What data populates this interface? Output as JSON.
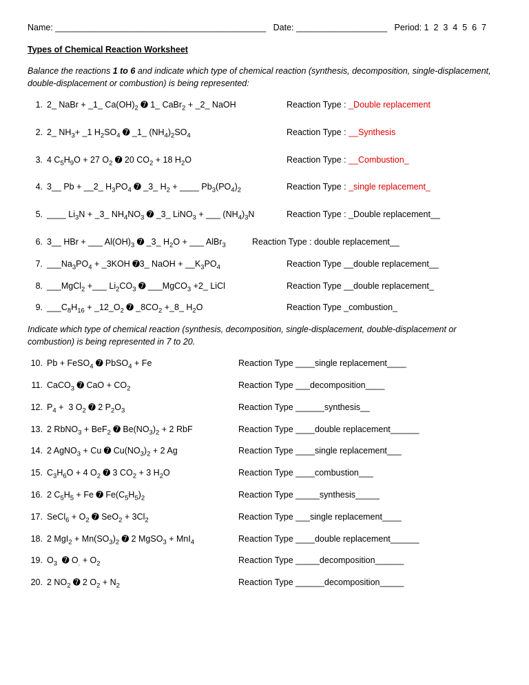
{
  "header": {
    "name_label": "Name: ____________________________________________",
    "date_label": "Date: ___________________",
    "period_label": "Period: 1  2  3  4  5  6  7"
  },
  "title": "Types of Chemical Reaction Worksheet",
  "instructions1_pre": "Balance the reactions ",
  "instructions1_bold": "1 to 6",
  "instructions1_post": " and indicate which type of chemical reaction (synthesis, decomposition, single-displacement, double-displacement or combustion) is being represented:",
  "instructions2": "Indicate which type of chemical reaction (synthesis, decomposition, single-displacement, double-displacement or combustion) is being represented in 7 to 20.",
  "rt_label_colon": "Reaction Type : ",
  "rt_label": "Reaction Type ",
  "q": {
    "1": {
      "num": "1.",
      "eq": "2_ NaBr + _1_ Ca(OH)₂ ➐ 1_ CaBr₂ + _2_ NaOH",
      "ans": "_Double replacement",
      "red": true
    },
    "2": {
      "num": "2.",
      "eq": "2_ NH₃+ _1 H₂SO₄ ➐ _1_ (NH₄)₂SO₄",
      "ans": "__Synthesis",
      "red": true
    },
    "3": {
      "num": "3.",
      "eq": "4 C₅H₉O + 27 O₂ ➐ 20 CO₂ + 18 H₂O",
      "ans": "__Combustion_",
      "red": true
    },
    "4": {
      "num": "4.",
      "eq": "3__ Pb + __2_ H₃PO₄ ➐ _3_ H₂ + ____ Pb₃(PO₄)₂",
      "ans": "_single replacement_",
      "red": true
    },
    "5": {
      "num": "5.",
      "eq": "____ Li₃N + _3_ NH₄NO₃ ➐ _3_ LiNO₃ + ___ (NH₄)₃N",
      "ans": "_Double replacement__",
      "red": false
    },
    "6": {
      "num": "6.",
      "eq": "3__ HBr + ___ Al(OH)₃ ➐ _3_ H₂O + ___ AlBr₃",
      "ans": "double replacement__",
      "red": false,
      "rtwidth": "narrow"
    },
    "7": {
      "num": "7.",
      "eq": "___Na₃PO₄ + _3KOH ➐3_ NaOH + __K₃PO₄",
      "ans": "__double replacement__",
      "red": false
    },
    "8": {
      "num": "8.",
      "eq": "___MgCl₂ +___ Li₂CO₃ ➐ ___MgCO₃ +2_ LiCl",
      "ans": "__double replacement_",
      "red": false
    },
    "9": {
      "num": "9.",
      "eq": "___C₈H₁₆ + _12_O₂ ➐ _8CO₂ +_8_ H₂O",
      "ans": "_combustion_",
      "red": false
    },
    "10": {
      "num": "10.",
      "eq": "Pb + FeSO₄ ➐ PbSO₄ + Fe",
      "ans": "____single replacement____"
    },
    "11": {
      "num": "11.",
      "eq": "CaCO₃ ➐ CaO + CO₂",
      "ans": "___decomposition____"
    },
    "12": {
      "num": "12.",
      "eq": "P₄ +  3 O₂ ➐ 2 P₂O₃",
      "ans": "______synthesis__"
    },
    "13": {
      "num": "13.",
      "eq": "2 RbNO₃ + BeF₂ ➐ Be(NO₃)₂ + 2 RbF",
      "ans": "____double replacement______"
    },
    "14": {
      "num": "14.",
      "eq": "2 AgNO₃ + Cu ➐ Cu(NO₃)₂ + 2 Ag",
      "ans": "____single replacement___"
    },
    "15": {
      "num": "15.",
      "eq": "C₃H₆O + 4 O₂ ➐ 3 CO₂ + 3 H₂O",
      "ans": "____combustion___"
    },
    "16": {
      "num": "16.",
      "eq": "2 C₅H₅ + Fe ➐ Fe(C₅H₅)₂",
      "ans": "_____synthesis_____"
    },
    "17": {
      "num": "17.",
      "eq": "SeCl₆ + O₂ ➐ SeO₂ + 3Cl₂",
      "ans": "___single replacement____"
    },
    "18": {
      "num": "18.",
      "eq": "2 MgI₂ + Mn(SO₃)₂ ➐ 2 MgSO₃ + MnI₄",
      "ans": "____double replacement______"
    },
    "19": {
      "num": "19.",
      "eq": "O₃  ➐ O· + O₂",
      "ans": "_____decomposition______"
    },
    "20": {
      "num": "20.",
      "eq": "2 NO₂ ➐ 2 O₂ + N₂",
      "ans": "______decomposition_____"
    }
  },
  "layout": {
    "eq_width_part1": "330px",
    "eq_width_part1_q6": "280px",
    "eq_width_part2": "260px"
  },
  "colors": {
    "answer_red": "#e00000",
    "text": "#000000",
    "bg": "#ffffff"
  },
  "fonts": {
    "body_size": 12.5,
    "sub_size": 9.5
  }
}
